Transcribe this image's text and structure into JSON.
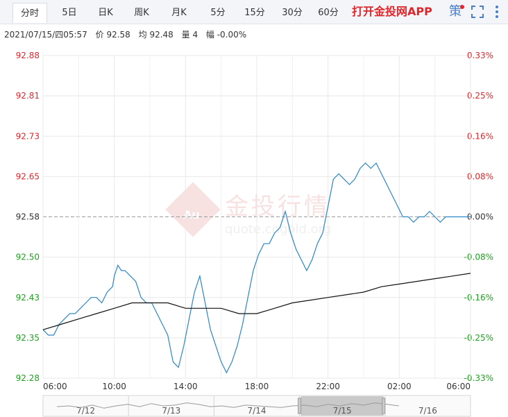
{
  "tabs": [
    {
      "label": "分时",
      "active": true
    },
    {
      "label": "5日"
    },
    {
      "label": "日K"
    },
    {
      "label": "周K"
    },
    {
      "label": "月K"
    },
    {
      "label": "5分"
    },
    {
      "label": "15分"
    },
    {
      "label": "30分"
    },
    {
      "label": "60分"
    }
  ],
  "promo": "打开金投网APP",
  "toolbar": {
    "strategy": "策"
  },
  "info": {
    "datetime": "2021/07/15/四05:57",
    "price": "价 92.58",
    "avg": "均 92.48",
    "volume": "量 4",
    "change": "幅 -0.00%"
  },
  "watermark": {
    "text": "金投行情",
    "url": "quote.cngold.org",
    "logo": "Au"
  },
  "colors": {
    "up": "#e0262b",
    "down": "#1aa21a",
    "price_line": "#2a86c8",
    "avg_line": "#111111",
    "neutral": "#333333"
  },
  "chart_data": {
    "type": "line",
    "ylim": [
      92.28,
      92.88
    ],
    "y_ticks": [
      "92.88",
      "92.81",
      "92.73",
      "92.65",
      "92.58",
      "92.50",
      "92.43",
      "92.35",
      "92.28"
    ],
    "pct_ticks": [
      "0.33%",
      "0.25%",
      "0.16%",
      "0.08%",
      "0.00%",
      "-0.08%",
      "-0.16%",
      "-0.25%",
      "-0.33%"
    ],
    "x_ticks": [
      "06:00",
      "10:00",
      "14:00",
      "18:00",
      "22:00",
      "02:00",
      "06:00"
    ],
    "x_range_hours": [
      0,
      24
    ],
    "prev_close": 92.58,
    "series": [
      {
        "x": [
          0,
          0.3,
          0.6,
          0.9,
          1.2,
          1.5,
          1.8,
          2.1,
          2.4,
          2.7,
          3.0,
          3.3,
          3.6,
          3.9,
          4.0,
          4.2,
          4.4,
          4.6,
          4.9,
          5.2,
          5.5,
          5.8,
          6.1,
          6.4,
          6.7,
          7.0,
          7.3,
          7.6,
          7.9,
          8.2,
          8.5,
          8.8,
          9.1,
          9.4,
          9.7,
          10.0,
          10.3,
          10.6,
          10.9,
          11.2,
          11.5,
          11.8,
          12.1,
          12.4,
          12.7,
          13.0,
          13.3,
          13.6,
          13.9,
          14.2,
          14.5,
          14.8,
          15.1,
          15.4,
          15.7,
          16.0,
          16.3,
          16.6,
          16.9,
          17.2,
          17.5,
          17.8,
          18.1,
          18.4,
          18.7,
          19.0,
          19.3,
          19.6,
          19.9,
          20.2,
          20.5,
          20.8,
          21.1,
          21.4,
          21.7,
          22.0,
          22.3,
          22.6,
          22.9,
          23.2,
          23.5,
          23.8,
          24.0
        ],
        "y": [
          92.37,
          92.36,
          92.36,
          92.38,
          92.39,
          92.4,
          92.4,
          92.41,
          92.42,
          92.43,
          92.43,
          92.42,
          92.44,
          92.45,
          92.47,
          92.49,
          92.48,
          92.48,
          92.47,
          92.46,
          92.43,
          92.42,
          92.42,
          92.4,
          92.38,
          92.36,
          92.31,
          92.3,
          92.34,
          92.39,
          92.44,
          92.47,
          92.42,
          92.37,
          92.34,
          92.31,
          92.29,
          92.31,
          92.34,
          92.38,
          92.43,
          92.48,
          92.51,
          92.53,
          92.53,
          92.55,
          92.56,
          92.59,
          92.55,
          92.52,
          92.5,
          92.48,
          92.5,
          92.53,
          92.55,
          92.6,
          92.65,
          92.66,
          92.65,
          92.64,
          92.65,
          92.67,
          92.68,
          92.67,
          92.68,
          92.66,
          92.64,
          92.62,
          92.6,
          92.58,
          92.58,
          92.57,
          92.58,
          92.58,
          92.59,
          92.58,
          92.57,
          92.58,
          92.58,
          92.58,
          92.58,
          92.58,
          92.58
        ]
      },
      {
        "x": [
          0,
          1,
          2,
          3,
          4,
          5,
          6,
          7,
          8,
          9,
          10,
          11,
          12,
          13,
          14,
          15,
          16,
          17,
          18,
          19,
          20,
          21,
          22,
          23,
          24
        ],
        "y": [
          92.37,
          92.38,
          92.39,
          92.4,
          92.41,
          92.42,
          92.42,
          92.42,
          92.41,
          92.41,
          92.41,
          92.4,
          92.4,
          92.41,
          92.42,
          92.425,
          92.43,
          92.435,
          92.44,
          92.45,
          92.455,
          92.46,
          92.465,
          92.47,
          92.475
        ]
      }
    ],
    "navigator": {
      "labels": [
        "7/12",
        "7/13",
        "7/14",
        "7/15",
        "7/16"
      ],
      "selected": "7/15"
    }
  }
}
